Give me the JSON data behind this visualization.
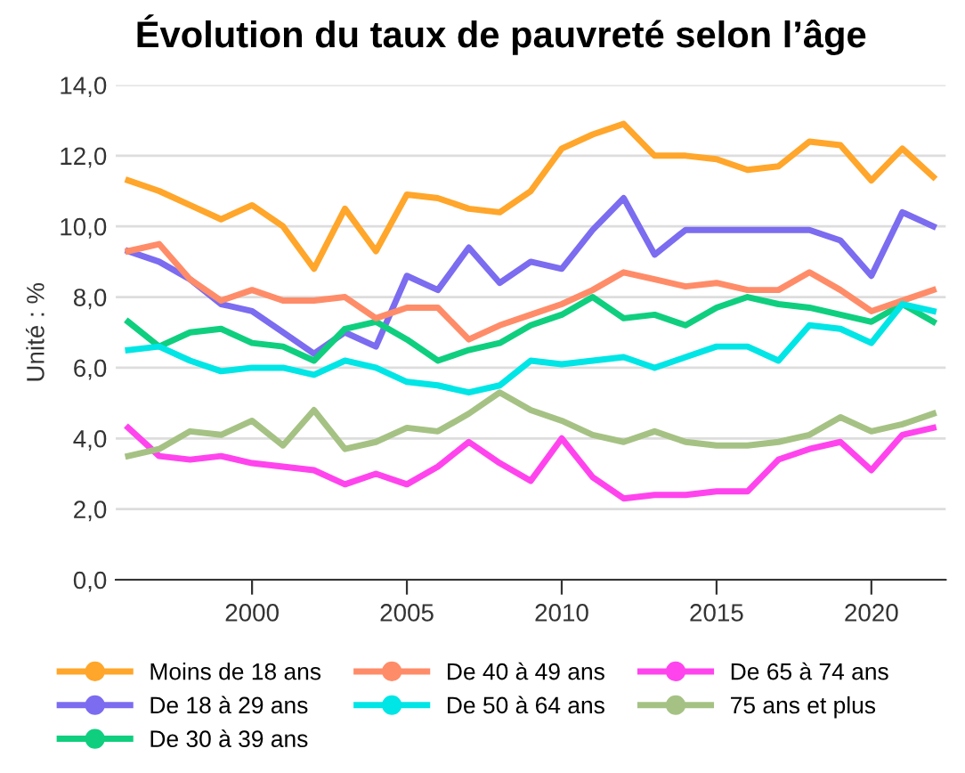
{
  "chart_data": {
    "type": "line",
    "title": "Évolution du taux de pauvreté selon l’âge",
    "ylabel": "Unité : %",
    "x": [
      1996,
      1997,
      1998,
      1999,
      2000,
      2001,
      2002,
      2003,
      2004,
      2005,
      2006,
      2007,
      2008,
      2009,
      2010,
      2011,
      2012,
      2013,
      2014,
      2015,
      2016,
      2017,
      2018,
      2019,
      2020,
      2021,
      2022
    ],
    "series": [
      {
        "name": "Moins de 18 ans",
        "color": "#ffa62b",
        "values": [
          11.3,
          11.0,
          10.6,
          10.2,
          10.6,
          10.0,
          8.8,
          10.5,
          9.3,
          10.9,
          10.8,
          10.5,
          10.4,
          11.0,
          12.2,
          12.6,
          12.9,
          12.0,
          12.0,
          11.9,
          11.6,
          11.7,
          12.4,
          12.3,
          11.3,
          12.2,
          11.4
        ]
      },
      {
        "name": "De 18 à 29 ans",
        "color": "#7b6cf0",
        "values": [
          9.3,
          9.0,
          8.5,
          7.8,
          7.6,
          7.0,
          6.4,
          7.0,
          6.6,
          8.6,
          8.2,
          9.4,
          8.4,
          9.0,
          8.8,
          9.9,
          10.8,
          9.2,
          9.9,
          9.9,
          9.9,
          9.9,
          9.9,
          9.6,
          8.6,
          10.4,
          10.0
        ]
      },
      {
        "name": "De 30 à 39 ans",
        "color": "#0fcf7f",
        "values": [
          7.3,
          6.6,
          7.0,
          7.1,
          6.7,
          6.6,
          6.2,
          7.1,
          7.3,
          6.8,
          6.2,
          6.5,
          6.7,
          7.2,
          7.5,
          8.0,
          7.4,
          7.5,
          7.2,
          7.7,
          8.0,
          7.8,
          7.7,
          7.5,
          7.3,
          7.8,
          7.3
        ]
      },
      {
        "name": "De 40 à 49 ans",
        "color": "#ff8c69",
        "values": [
          9.3,
          9.5,
          8.5,
          7.9,
          8.2,
          7.9,
          7.9,
          8.0,
          7.4,
          7.7,
          7.7,
          6.8,
          7.2,
          7.5,
          7.8,
          8.2,
          8.7,
          8.5,
          8.3,
          8.4,
          8.2,
          8.2,
          8.7,
          8.2,
          7.6,
          7.9,
          8.2
        ]
      },
      {
        "name": "De 50 à 64 ans",
        "color": "#00e5e5",
        "values": [
          6.5,
          6.6,
          6.2,
          5.9,
          6.0,
          6.0,
          5.8,
          6.2,
          6.0,
          5.6,
          5.5,
          5.3,
          5.5,
          6.2,
          6.1,
          6.2,
          6.3,
          6.0,
          6.3,
          6.6,
          6.6,
          6.2,
          7.2,
          7.1,
          6.7,
          7.8,
          7.6
        ]
      },
      {
        "name": "De 65 à 74 ans",
        "color": "#ff44ee",
        "values": [
          4.3,
          3.5,
          3.4,
          3.5,
          3.3,
          3.2,
          3.1,
          2.7,
          3.0,
          2.7,
          3.2,
          3.9,
          3.3,
          2.8,
          4.0,
          2.9,
          2.3,
          2.4,
          2.4,
          2.5,
          2.5,
          3.4,
          3.7,
          3.9,
          3.1,
          4.1,
          4.3
        ]
      },
      {
        "name": "75 ans et plus",
        "color": "#a5c284",
        "values": [
          3.5,
          3.7,
          4.2,
          4.1,
          4.5,
          3.8,
          4.8,
          3.7,
          3.9,
          4.3,
          4.2,
          4.7,
          5.3,
          4.8,
          4.5,
          4.1,
          3.9,
          4.2,
          3.9,
          3.8,
          3.8,
          3.9,
          4.1,
          4.6,
          4.2,
          4.4,
          4.7
        ]
      }
    ],
    "xlim": [
      1995.6,
      2022.4
    ],
    "xticks": [
      2000,
      2005,
      2010,
      2015,
      2020
    ],
    "ylim": [
      0,
      14
    ],
    "yticks": [
      {
        "value": 0,
        "label": "0,0"
      },
      {
        "value": 2,
        "label": "2,0"
      },
      {
        "value": 4,
        "label": "4,0"
      },
      {
        "value": 6,
        "label": "6,0"
      },
      {
        "value": 8,
        "label": "8,0"
      },
      {
        "value": 10,
        "label": "10,0"
      },
      {
        "value": 12,
        "label": "12,0"
      },
      {
        "value": 14,
        "label": "14,0"
      }
    ],
    "grid": "y",
    "legend": "bottom"
  }
}
